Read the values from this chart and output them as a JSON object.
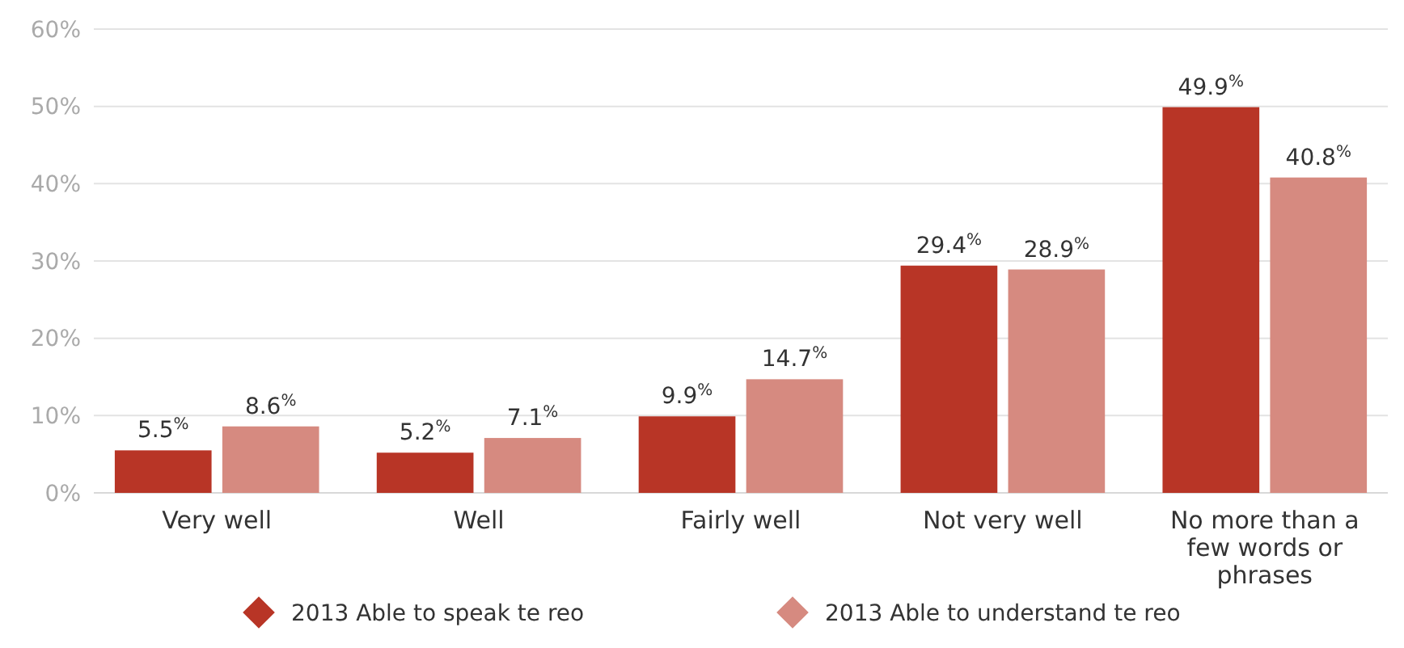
{
  "chart_data": {
    "type": "bar",
    "categories": [
      "Very well",
      "Well",
      "Fairly well",
      "Not very well",
      "No more than a few words or phrases"
    ],
    "series": [
      {
        "name": "2013 Able to speak te reo",
        "color": "#b83526",
        "values": [
          5.5,
          5.2,
          9.9,
          29.4,
          49.9
        ],
        "value_labels": [
          "5.5$^{%}$",
          "5.2$^{%}$",
          "9.9$^{%}$",
          "29.4$^{%}$",
          "49.9$^{%}$"
        ]
      },
      {
        "name": "2013 Able to understand te reo",
        "color": "#d68a80",
        "values": [
          8.6,
          7.1,
          14.7,
          28.9,
          40.8
        ],
        "value_labels": [
          "8.6$^{%}$",
          "7.1$^{%}$",
          "14.7$^{%}$",
          "28.9$^{%}$",
          "40.8$^{%}$"
        ]
      }
    ],
    "ylim": [
      0,
      60
    ],
    "yticks": [
      {
        "value": 0,
        "label": "0%"
      },
      {
        "value": 10,
        "label": "10%"
      },
      {
        "value": 20,
        "label": "20%"
      },
      {
        "value": 30,
        "label": "30%"
      },
      {
        "value": 40,
        "label": "40%"
      },
      {
        "value": 50,
        "label": "50%"
      },
      {
        "value": 60,
        "label": "60%"
      }
    ],
    "grid": "y",
    "legend": "bottom",
    "marker": "diamond"
  }
}
